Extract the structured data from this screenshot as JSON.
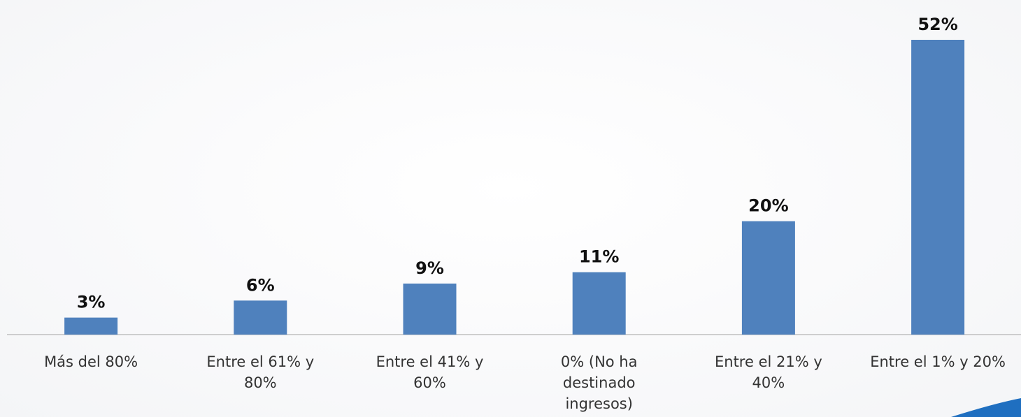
{
  "chart_data": {
    "type": "bar",
    "categories": [
      "Más del 80%",
      "Entre el 61% y 80%",
      "Entre el 41% y 60%",
      "0% (No ha destinado ingresos)",
      "Entre el 21% y 40%",
      "Entre el 1% y 20%"
    ],
    "values": [
      3,
      6,
      9,
      11,
      20,
      52
    ],
    "value_labels": [
      "3%",
      "6%",
      "9%",
      "11%",
      "20%",
      "52%"
    ],
    "color": "#4f81bd",
    "grid": false
  }
}
